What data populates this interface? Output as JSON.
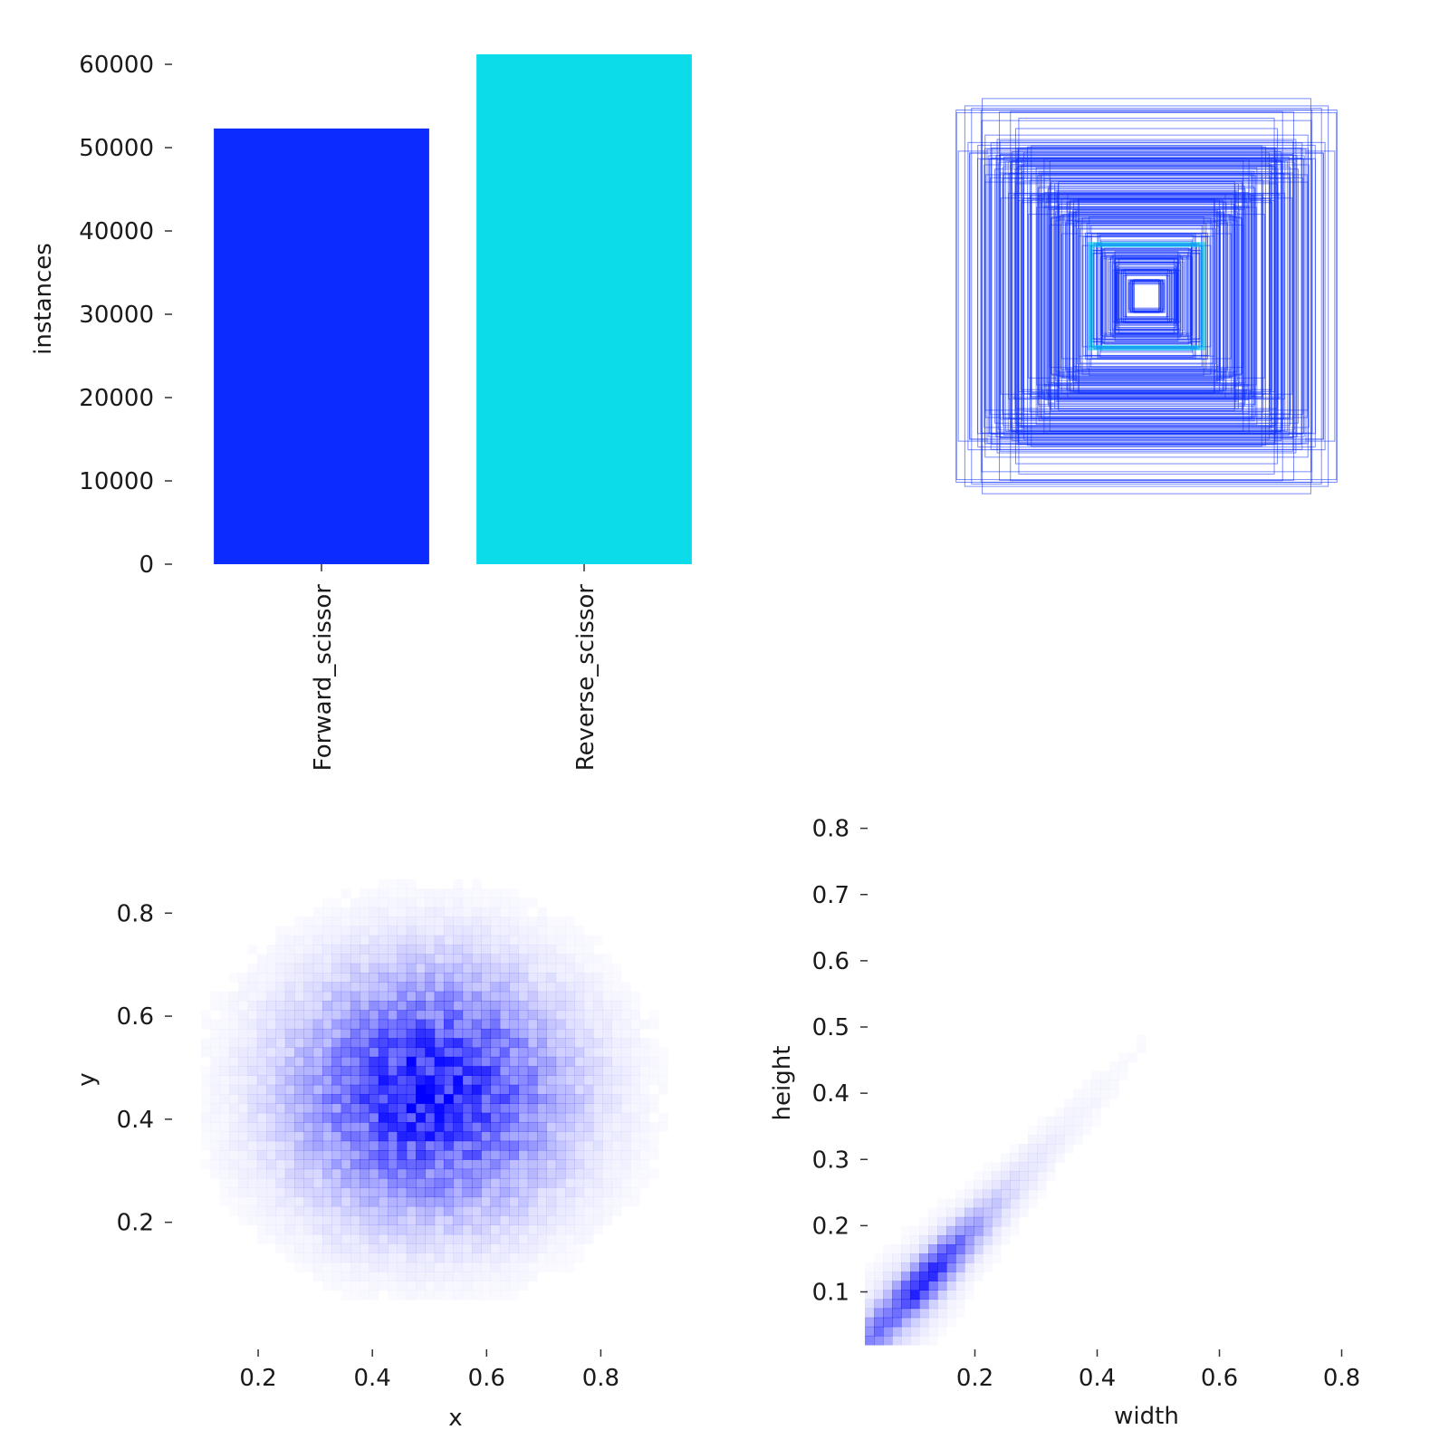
{
  "chart_data": [
    {
      "type": "bar",
      "categories": [
        "Forward_scissor",
        "Reverse_scissor"
      ],
      "values": [
        52300,
        61200
      ],
      "colors": [
        "#0b2bff",
        "#0cdce9"
      ],
      "ylabel": "instances",
      "ylim": [
        0,
        61200
      ],
      "yticks": [
        0,
        10000,
        20000,
        30000,
        40000,
        50000,
        60000
      ],
      "grid": false
    },
    {
      "type": "scatter",
      "description_kind": "overlaid bounding boxes centered in panel",
      "colors": [
        "#0b2bff",
        "#0cdce9"
      ],
      "axes_visible": false
    },
    {
      "type": "heatmap",
      "xlabel": "x",
      "ylabel": "y",
      "xlim": [
        0.1,
        0.95
      ],
      "ylim": [
        0.05,
        0.92
      ],
      "xticks": [
        0.2,
        0.4,
        0.6,
        0.8
      ],
      "yticks": [
        0.2,
        0.4,
        0.6,
        0.8
      ],
      "color": "#0000ff",
      "peak_center": [
        0.5,
        0.45
      ],
      "spread": [
        0.15,
        0.15
      ]
    },
    {
      "type": "heatmap",
      "xlabel": "width",
      "ylabel": "height",
      "xlim": [
        0.02,
        0.82
      ],
      "ylim": [
        0.02,
        0.82
      ],
      "xticks": [
        0.2,
        0.4,
        0.6,
        0.8
      ],
      "yticks": [
        0.1,
        0.2,
        0.3,
        0.4,
        0.5,
        0.6,
        0.7,
        0.8
      ],
      "color": "#0000ff",
      "trend": "height approximately equals width",
      "peak": [
        0.15,
        0.15
      ]
    }
  ]
}
